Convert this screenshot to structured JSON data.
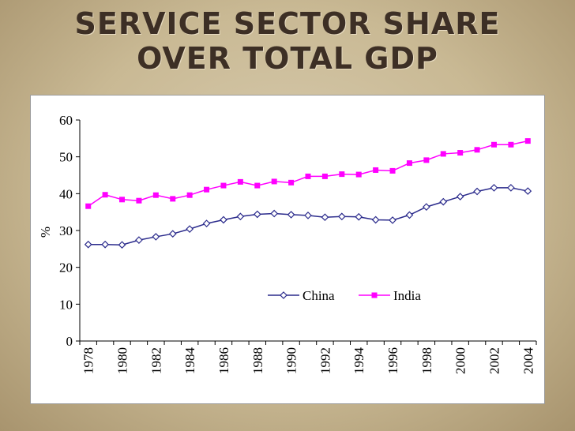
{
  "slide": {
    "title": "SERVICE SECTOR SHARE OVER TOTAL GDP"
  },
  "colors": {
    "china": "#2b2b8c",
    "india": "#ff00ff",
    "axis": "#000000"
  },
  "chart_data": {
    "type": "line",
    "title": "",
    "xlabel": "",
    "ylabel": "%",
    "ylim": [
      0,
      60
    ],
    "yticks": [
      0,
      10,
      20,
      30,
      40,
      50,
      60
    ],
    "x": [
      1978,
      1979,
      1980,
      1981,
      1982,
      1983,
      1984,
      1985,
      1986,
      1987,
      1988,
      1989,
      1990,
      1991,
      1992,
      1993,
      1994,
      1995,
      1996,
      1997,
      1998,
      1999,
      2000,
      2001,
      2002,
      2003,
      2004
    ],
    "xtick_labels": [
      "1978",
      "1980",
      "1982",
      "1984",
      "1986",
      "1988",
      "1990",
      "1992",
      "1994",
      "1996",
      "1998",
      "2000",
      "2002",
      "2004"
    ],
    "legend_position": "center-right",
    "series": [
      {
        "name": "China",
        "marker": "diamond",
        "values": [
          26.2,
          26.2,
          26.1,
          27.4,
          28.3,
          29.1,
          30.4,
          31.9,
          32.9,
          33.8,
          34.4,
          34.6,
          34.3,
          34.1,
          33.6,
          33.8,
          33.7,
          32.9,
          32.8,
          34.2,
          36.4,
          37.8,
          39.2,
          40.6,
          41.6,
          41.6,
          40.7
        ]
      },
      {
        "name": "India",
        "marker": "square",
        "values": [
          36.6,
          39.7,
          38.4,
          38.1,
          39.6,
          38.6,
          39.6,
          41.1,
          42.2,
          43.2,
          42.2,
          43.3,
          43.0,
          44.7,
          44.7,
          45.3,
          45.2,
          46.4,
          46.2,
          48.3,
          49.1,
          50.8,
          51.1,
          51.9,
          53.3,
          53.3,
          54.3
        ]
      }
    ]
  }
}
